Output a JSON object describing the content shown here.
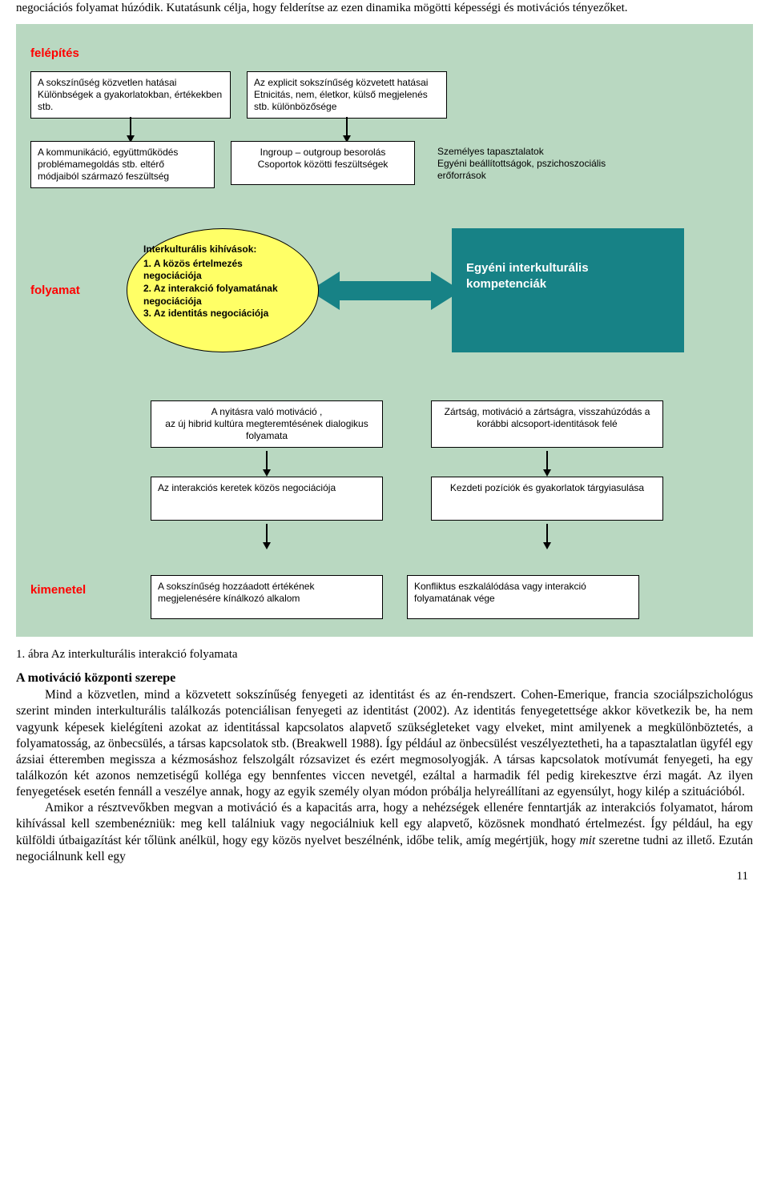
{
  "top_text": "negociációs folyamat húzódik. Kutatásunk célja, hogy felderítse az ezen dinamika mögötti képességi és motivációs tényezőket.",
  "diagram": {
    "bg_color": "#b9d8c1",
    "section_felepites": "felépítés",
    "row1_box1": "A sokszínűség közvetlen hatásai\nKülönbségek a gyakorlatokban, értékekben stb.",
    "row1_box2": "Az explicit sokszínűség közvetett hatásai\nEtnicitás, nem, életkor, külső megjelenés stb. különbözősége",
    "row2_box1": "A kommunikáció, együttműködés problémamegoldás stb. eltérő módjaiból származó feszültség",
    "row2_box2": "Ingroup – outgroup besorolás\nCsoportok közötti feszültségek",
    "row2_box3": "Személyes tapasztalatok\nEgyéni beállítottságok, pszichoszociális erőforrások",
    "section_folyamat": "folyamat",
    "ellipse_title": "Interkulturális kihívások:",
    "ellipse_item1": "1.  A közös értelmezés negociációja",
    "ellipse_item2": "2.  Az interakció folyamatának negociációja",
    "ellipse_item3": "3.  Az identitás negociációja",
    "teal_box": "Egyéni interkulturális kompetenciák",
    "arrow_fill": "#178286",
    "bottom_r1_b1": "A nyitásra való motiváció ,\naz új hibrid kultúra megteremtésének dialogikus folyamata",
    "bottom_r1_b2": "Zártság, motiváció a zártságra, visszahúzódás a korábbi alcsoport-identitások felé",
    "bottom_r2_b1": "Az interakciós keretek közös negociációja",
    "bottom_r2_b2": "Kezdeti pozíciók és gyakorlatok tárgyiasulása",
    "section_kimenetel": "kimenetel",
    "kimenetel_b1": "A sokszínűség hozzáadott értékének megjelenésére kínálkozó alkalom",
    "kimenetel_b2": "Konfliktus eszkalálódása vagy interakció folyamatának vége"
  },
  "figure_caption": "1. ábra Az interkulturális interakció folyamata",
  "heading": "A motiváció központi szerepe",
  "body_p1": "Mind a közvetlen, mind a közvetett sokszínűség fenyegeti az identitást és az én-rendszert. Cohen-Emerique, francia szociálpszichológus szerint minden interkulturális találkozás potenciálisan fenyegeti az identitást (2002). Az identitás fenyegetettsége akkor következik be, ha nem vagyunk képesek kielégíteni azokat az identitással kapcsolatos alapvető szükségleteket vagy elveket, mint amilyenek a megkülönböztetés, a folyamatosság, az önbecsülés, a társas kapcsolatok stb. (Breakwell 1988). Így például az önbecsülést veszélyeztetheti, ha a tapasztalatlan ügyfél egy ázsiai étteremben megissza a kézmosáshoz felszolgált rózsavizet és ezért megmosolyogják. A társas kapcsolatok motívumát fenyegeti, ha egy találkozón két azonos nemzetiségű kolléga egy bennfentes viccen nevetgél, ezáltal a harmadik fél pedig kirekesztve érzi magát. Az ilyen fenyegetések esetén fennáll a veszélye annak, hogy az egyik személy olyan módon próbálja helyreállítani az egyensúlyt, hogy kilép a szituációból.",
  "body_p2": "Amikor a résztvevőkben megvan a motiváció és a kapacitás arra, hogy a nehézségek ellenére fenntartják az interakciós folyamatot, három kihívással kell szembenézniük: meg kell találniuk vagy negociálniuk kell egy alapvető, közösnek mondható értelmezést. Így például, ha egy külföldi útbaigazítást kér tőlünk anélkül, hogy egy közös nyelvet beszélnénk, időbe telik, amíg megértjük, hogy mit szeretne tudni az illető. Ezután negociálnunk kell egy",
  "body_p2_italic_word": "mit",
  "page_number": "11"
}
